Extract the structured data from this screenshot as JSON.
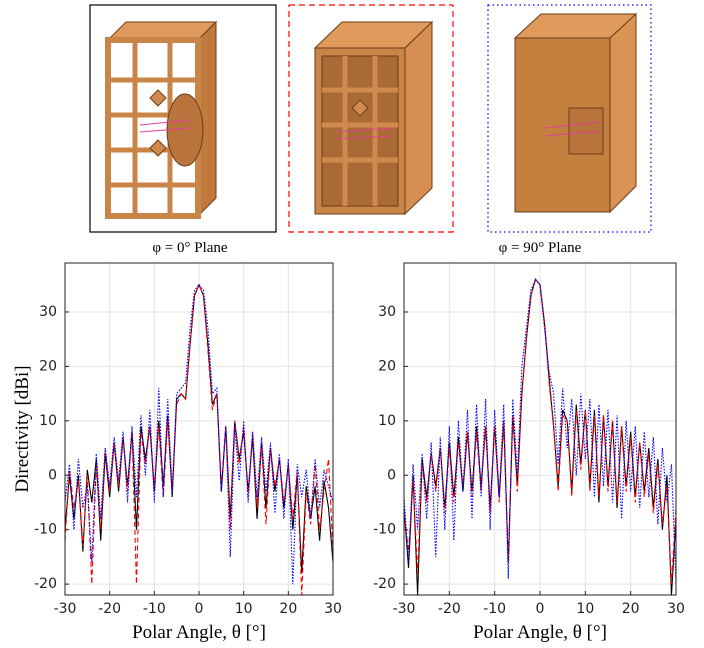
{
  "chart_data": [
    {
      "type": "line",
      "title": "φ = 0° Plane",
      "xlabel": "Polar Angle, θ [°]",
      "ylabel": "Directivity [dBi]",
      "x": [
        -30,
        -29,
        -28,
        -27,
        -26,
        -25,
        -24,
        -23,
        -22,
        -21,
        -20,
        -19,
        -18,
        -17,
        -16,
        -15,
        -14,
        -13,
        -12,
        -11,
        -10,
        -9,
        -8,
        -7,
        -6,
        -5,
        -4,
        -3,
        -2,
        -1,
        0,
        1,
        2,
        3,
        4,
        5,
        6,
        7,
        8,
        9,
        10,
        11,
        12,
        13,
        14,
        15,
        16,
        17,
        18,
        19,
        20,
        21,
        22,
        23,
        24,
        25,
        26,
        27,
        28,
        29,
        30
      ],
      "xlim": [
        -30,
        30
      ],
      "ylim": [
        -22,
        39
      ],
      "xticks": [
        -30,
        -20,
        -10,
        0,
        10,
        20,
        30
      ],
      "yticks": [
        -20,
        -10,
        0,
        10,
        20,
        30
      ],
      "grid": true,
      "series": [
        {
          "color": "#000000",
          "dash": "solid",
          "values": [
            -10,
            0,
            -8,
            0,
            -14,
            1,
            -5,
            3,
            -12,
            4,
            -4,
            6,
            -3,
            7,
            -2,
            8,
            -10,
            9,
            3,
            9,
            -3,
            10,
            -2,
            11,
            -4,
            14,
            15,
            14,
            24,
            33,
            35,
            33,
            24,
            13,
            15,
            -3,
            9,
            -8,
            10,
            3,
            8,
            -3,
            7,
            -8,
            6,
            -6,
            5,
            -3,
            3,
            -6,
            2,
            -10,
            0,
            -18,
            -2,
            -8,
            -2,
            -12,
            -1,
            -6,
            -16
          ]
        },
        {
          "color": "#ff0000",
          "dash": "dashed",
          "values": [
            -12,
            1,
            -6,
            -1,
            -13,
            0,
            -20,
            2,
            -10,
            5,
            -3,
            6,
            -2,
            7,
            -3,
            8,
            -20,
            8,
            2,
            9,
            -2,
            9,
            -4,
            10,
            -3,
            13,
            15,
            14,
            24,
            33,
            35,
            33,
            23,
            12,
            15,
            -2,
            9,
            -10,
            10,
            2,
            9,
            -4,
            8,
            -6,
            6,
            -9,
            5,
            -2,
            3,
            -5,
            2,
            -8,
            1,
            -22,
            -3,
            -9,
            2,
            -10,
            -3,
            3,
            -14
          ]
        },
        {
          "color": "#0000ff",
          "dash": "dotted",
          "values": [
            -5,
            2,
            -10,
            3,
            -6,
            -2,
            -16,
            4,
            -8,
            5,
            -2,
            7,
            -1,
            8,
            -5,
            9,
            -4,
            11,
            0,
            12,
            -5,
            16,
            -4,
            14,
            -3,
            15,
            16,
            17,
            27,
            34,
            35,
            34,
            27,
            15,
            16,
            -3,
            9,
            -15,
            9,
            -1,
            10,
            -5,
            8,
            -4,
            7,
            -3,
            6,
            -7,
            4,
            -8,
            3,
            -20,
            2,
            -4,
            1,
            -8,
            3,
            -6,
            1,
            -2,
            -5
          ]
        }
      ]
    },
    {
      "type": "line",
      "title": "φ = 90° Plane",
      "xlabel": "Polar Angle, θ [°]",
      "x": [
        -30,
        -29,
        -28,
        -27,
        -26,
        -25,
        -24,
        -23,
        -22,
        -21,
        -20,
        -19,
        -18,
        -17,
        -16,
        -15,
        -14,
        -13,
        -12,
        -11,
        -10,
        -9,
        -8,
        -7,
        -6,
        -5,
        -4,
        -3,
        -2,
        -1,
        0,
        1,
        2,
        3,
        4,
        5,
        6,
        7,
        8,
        9,
        10,
        11,
        12,
        13,
        14,
        15,
        16,
        17,
        18,
        19,
        20,
        21,
        22,
        23,
        24,
        25,
        26,
        27,
        28,
        29,
        30
      ],
      "xlim": [
        -30,
        30
      ],
      "ylim": [
        -22,
        39
      ],
      "xticks": [
        -30,
        -20,
        -10,
        0,
        10,
        20,
        30
      ],
      "yticks": [
        -20,
        -10,
        0,
        10,
        20,
        30
      ],
      "grid": true,
      "series": [
        {
          "color": "#000000",
          "dash": "solid",
          "values": [
            -6,
            -17,
            0,
            -22,
            3,
            -4,
            4,
            -2,
            5,
            -6,
            6,
            -4,
            7,
            -3,
            8,
            -3,
            9,
            -2,
            9,
            -6,
            9,
            -4,
            10,
            -16,
            11,
            -2,
            15,
            25,
            33,
            36,
            35,
            28,
            18,
            9,
            -2,
            12,
            10,
            -3,
            13,
            2,
            12,
            -2,
            12,
            -5,
            11,
            -2,
            10,
            -6,
            9,
            -2,
            8,
            -4,
            6,
            -3,
            5,
            -6,
            3,
            -10,
            0,
            -22,
            -8
          ]
        },
        {
          "color": "#ff0000",
          "dash": "dashed",
          "values": [
            -7,
            -14,
            -1,
            -18,
            2,
            -5,
            4,
            -3,
            5,
            -7,
            5,
            -5,
            6,
            -2,
            8,
            -4,
            8,
            -3,
            9,
            -7,
            9,
            -5,
            10,
            -16,
            11,
            -3,
            15,
            25,
            33,
            36,
            35,
            28,
            17,
            9,
            -3,
            11,
            10,
            -4,
            12,
            1,
            12,
            -3,
            11,
            -4,
            11,
            -3,
            10,
            -5,
            9,
            -3,
            7,
            -5,
            6,
            -4,
            4,
            -7,
            2,
            -9,
            -2,
            -20,
            -6
          ]
        },
        {
          "color": "#0000ff",
          "dash": "dotted",
          "values": [
            -4,
            -16,
            2,
            -10,
            4,
            -8,
            6,
            -15,
            7,
            -10,
            9,
            -12,
            10,
            -3,
            12,
            -8,
            13,
            -4,
            14,
            -10,
            12,
            -4,
            13,
            -19,
            14,
            0,
            20,
            27,
            34,
            36,
            35,
            27,
            19,
            15,
            2,
            16,
            5,
            14,
            0,
            15,
            3,
            14,
            -4,
            13,
            -2,
            12,
            -5,
            11,
            -8,
            10,
            -3,
            9,
            -6,
            8,
            -4,
            7,
            -9,
            5,
            -5,
            2,
            -20
          ]
        }
      ]
    }
  ]
}
